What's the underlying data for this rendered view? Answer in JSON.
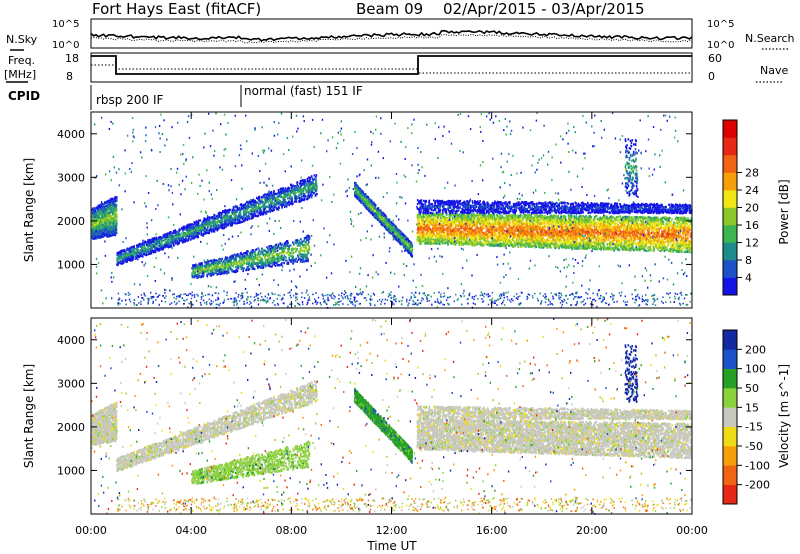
{
  "header": {
    "station": "Fort Hays East (fitACF)",
    "beam": "Beam 09",
    "date_range": "02/Apr/2015 - 03/Apr/2015"
  },
  "panels": {
    "nsky_label": "N.Sky",
    "nsearch_label": "N.Search",
    "freq_label_1": "Freq.",
    "freq_label_2": "[MHz]",
    "nave_label": "Nave",
    "cpid_label": "CPID",
    "noise_left_ticks": [
      "10^5",
      "10^0"
    ],
    "noise_right_ticks": [
      "10^5",
      "10^0"
    ],
    "freq_left_ticks": [
      "18",
      "8"
    ],
    "freq_right_ticks": [
      "60",
      "0"
    ],
    "cpid_segments": [
      {
        "label": "rbsp 200 IF",
        "start_hour": 0,
        "end_hour": 6
      },
      {
        "label": "normal (fast) 151 IF",
        "start_hour": 6,
        "end_hour": 24
      }
    ]
  },
  "chart_data": [
    {
      "type": "heatmap",
      "parameter": "Power",
      "ylabel": "Slant Range [km]",
      "colorbar_label": "Power [dB]",
      "yticks": [
        "1000",
        "2000",
        "3000",
        "4000"
      ],
      "ylim": [
        0,
        4500
      ],
      "xlim_hours": [
        0,
        24
      ],
      "colorbar_ticks": [
        "4",
        "8",
        "12",
        "16",
        "20",
        "24",
        "28"
      ],
      "colorbar_colors": [
        "#1414e6",
        "#1e50c8",
        "#1e8c8c",
        "#3cb450",
        "#8cc828",
        "#f0e614",
        "#f5a00a",
        "#f06414",
        "#e62814",
        "#dc0000"
      ]
    },
    {
      "type": "heatmap",
      "parameter": "Velocity",
      "ylabel": "Slant Range [km]",
      "colorbar_label": "Velocity [m s^-1]",
      "yticks": [
        "1000",
        "2000",
        "3000",
        "4000"
      ],
      "ylim": [
        0,
        4500
      ],
      "xlim_hours": [
        0,
        24
      ],
      "colorbar_ticks": [
        "200",
        "100",
        "50",
        "15",
        "-15",
        "-50",
        "-100",
        "-200"
      ],
      "colorbar_colors": [
        "#1428a0",
        "#1e50c8",
        "#28a028",
        "#8cd23c",
        "#c8c8c0",
        "#f0dc14",
        "#f5a00a",
        "#f06414",
        "#e62814"
      ]
    }
  ],
  "xaxis": {
    "label": "Time UT",
    "ticks": [
      "00:00",
      "04:00",
      "08:00",
      "12:00",
      "16:00",
      "20:00",
      "00:00"
    ]
  }
}
